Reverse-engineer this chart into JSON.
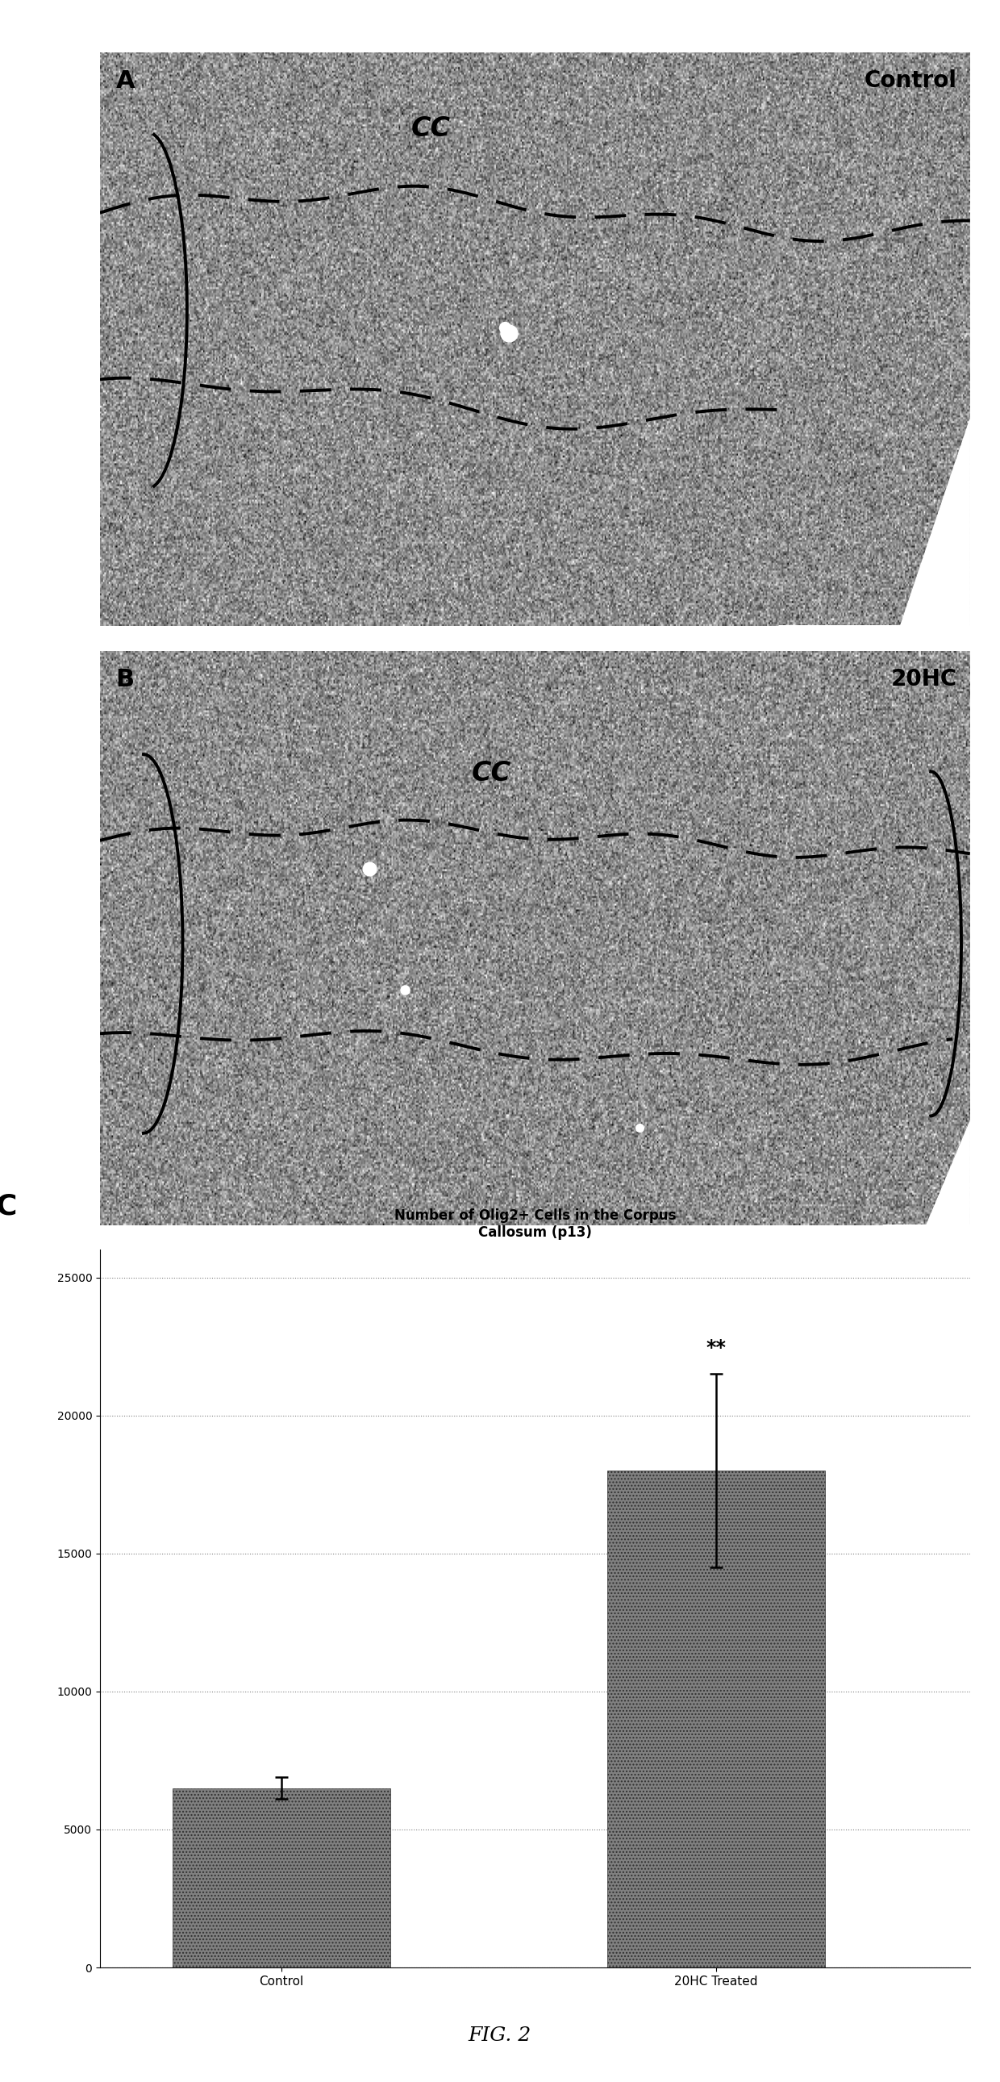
{
  "panel_A_label": "A",
  "panel_B_label": "B",
  "panel_C_label": "C",
  "panel_A_sublabel": "Control",
  "panel_B_sublabel": "20HC",
  "panel_CC_label": "CC",
  "bar_categories": [
    "Control",
    "20HC Treated"
  ],
  "bar_values": [
    6500,
    18000
  ],
  "bar_errors": [
    400,
    3500
  ],
  "bar_color": "#808080",
  "bar_hatch": "....",
  "title_line1": "Number of Olig2+ Cells in the Corpus",
  "title_line2": "Callosum (p13)",
  "yticks": [
    0,
    5000,
    10000,
    15000,
    20000,
    25000
  ],
  "ylim": [
    0,
    26000
  ],
  "significance_label": "**",
  "fig_label": "FIG. 2",
  "background_color": "#ffffff",
  "title_fontsize": 12,
  "axis_fontsize": 11,
  "tick_fontsize": 10,
  "panel_label_fontsize": 22,
  "sublabel_fontsize": 20,
  "cc_fontsize": 24,
  "fig_label_fontsize": 18
}
